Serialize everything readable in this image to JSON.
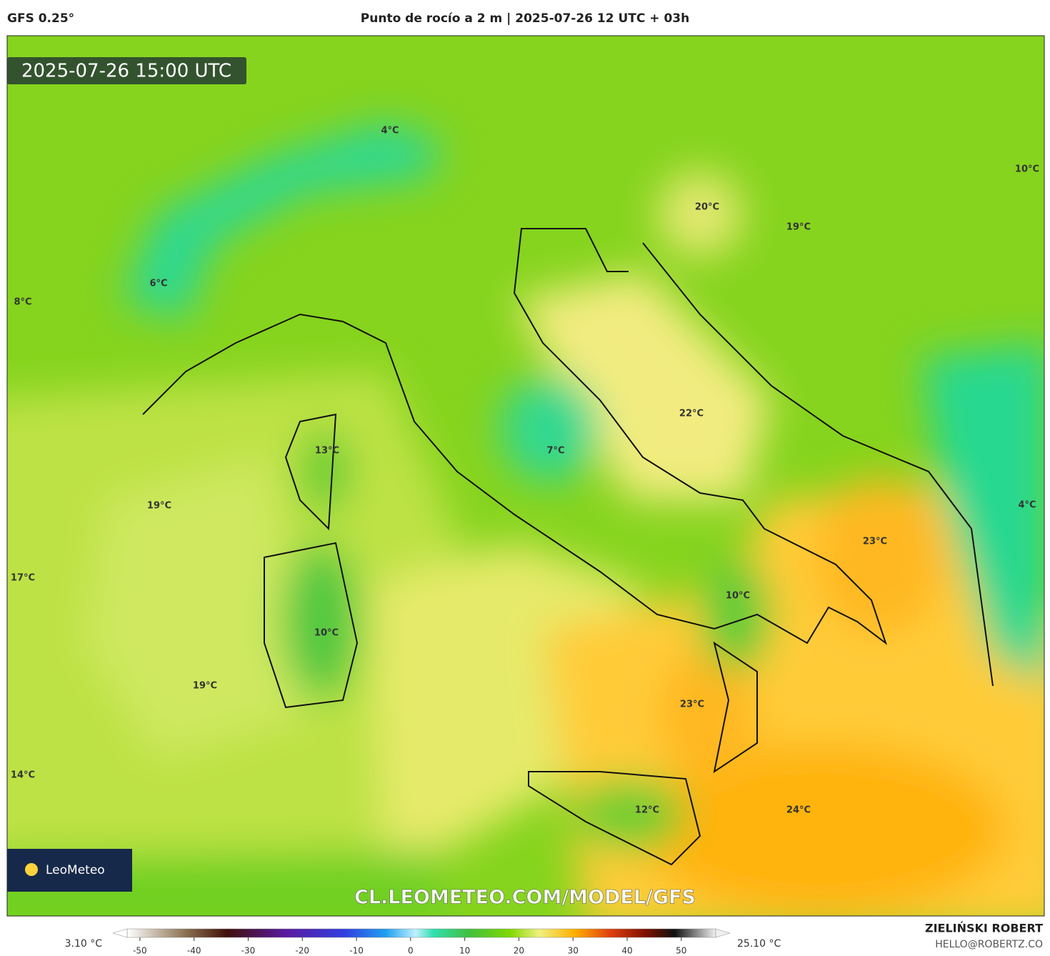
{
  "header": {
    "model": "GFS 0.25°",
    "title": "Punto de rocío a 2 m | 2025-07-26 12 UTC + 03h"
  },
  "map": {
    "timestamp": "2025-07-26 15:00 UTC",
    "watermark": "CL.LEOMETEO.COM/MODEL/GFS",
    "logo": "LeoMeteo",
    "labels": [
      "4°C",
      "10°C",
      "20°C",
      "19°C",
      "6°C",
      "8°C",
      "22°C",
      "13°C",
      "7°C",
      "19°C",
      "4°C",
      "23°C",
      "17°C",
      "10°C",
      "10°C",
      "19°C",
      "23°C",
      "14°C",
      "12°C",
      "24°C"
    ]
  },
  "colorbar": {
    "min_label": "3.10 °C",
    "max_label": "25.10 °C",
    "lim": [
      -55,
      59
    ],
    "ticks": [
      -50,
      -40,
      -30,
      -20,
      -10,
      0,
      10,
      20,
      30,
      40,
      50
    ]
  },
  "footer": {
    "author": "ZIELIŃSKI ROBERT",
    "email": "HELLO@ROBERTZ.CO"
  }
}
